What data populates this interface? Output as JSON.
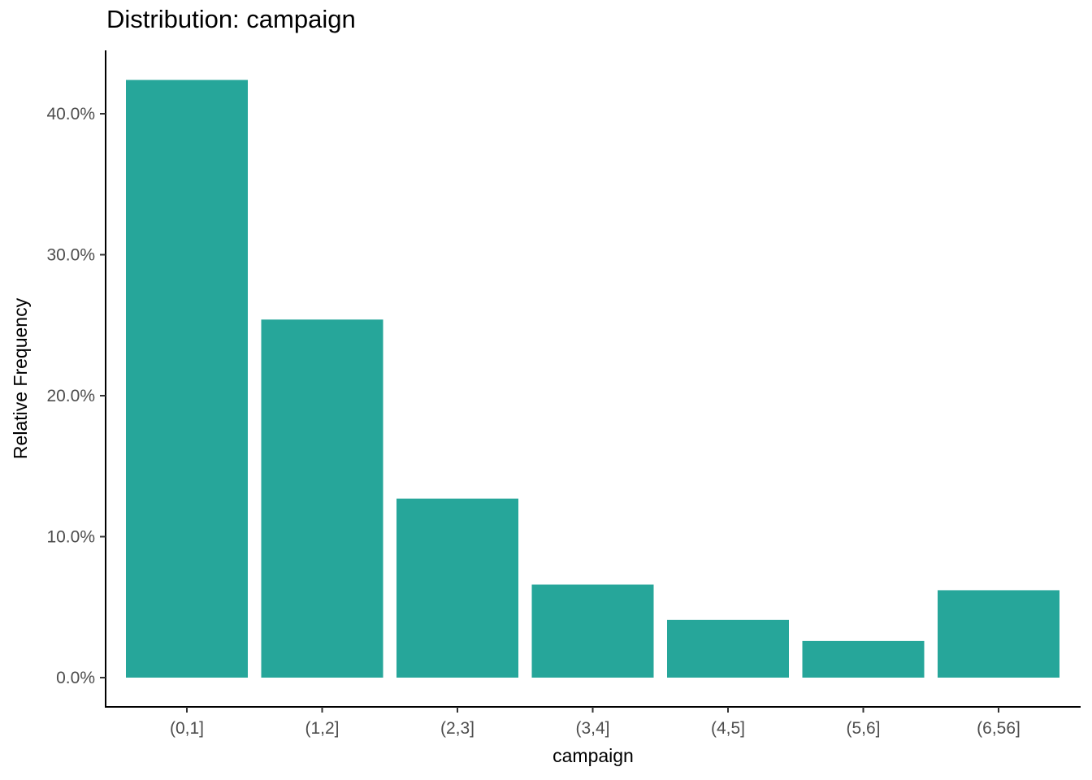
{
  "chart_data": {
    "type": "bar",
    "title": "Distribution: campaign",
    "xlabel": "campaign",
    "ylabel": "Relative Frequency",
    "categories": [
      "(0,1]",
      "(1,2]",
      "(2,3]",
      "(3,4]",
      "(4,5]",
      "(5,6]",
      "(6,56]"
    ],
    "values": [
      0.424,
      0.254,
      0.127,
      0.066,
      0.041,
      0.026,
      0.062
    ],
    "ylim": [
      0,
      0.45
    ],
    "yticks": [
      0.0,
      0.1,
      0.2,
      0.3,
      0.4
    ],
    "ytick_labels": [
      "0.0%",
      "10.0%",
      "20.0%",
      "30.0%",
      "40.0%"
    ],
    "bar_color": "#26a69a",
    "grid": false,
    "legend": "none"
  }
}
